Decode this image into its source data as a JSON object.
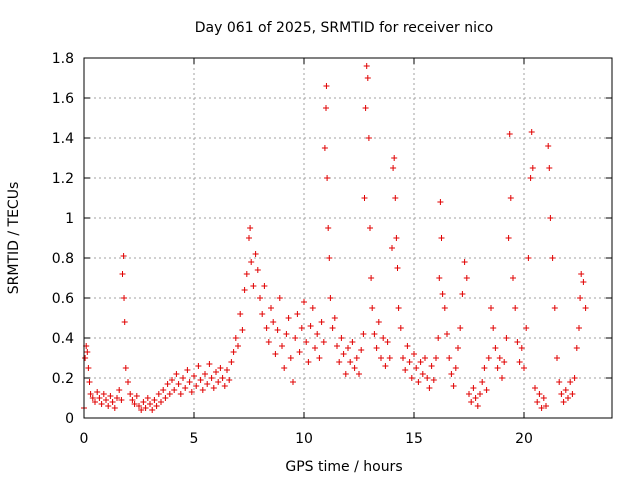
{
  "chart_data": {
    "type": "scatter",
    "title": "Day 061 of 2025, SRMTID for receiver nico",
    "xlabel": "GPS time / hours",
    "ylabel": "SRMTID / TECUs",
    "xlim": [
      0,
      24
    ],
    "ylim": [
      0,
      1.8
    ],
    "x_ticks": [
      0,
      5,
      10,
      15,
      20
    ],
    "x_tick_labels": [
      "0",
      "5",
      "10",
      "15",
      "20"
    ],
    "y_ticks": [
      0,
      0.2,
      0.4,
      0.6,
      0.8,
      1.0,
      1.2,
      1.4,
      1.6,
      1.8
    ],
    "y_tick_labels": [
      "0",
      "0.2",
      "0.4",
      "0.6",
      "0.8",
      "1",
      "1.2",
      "1.4",
      "1.6",
      "1.8"
    ],
    "grid": true,
    "marker": "+",
    "marker_color": "#e00000",
    "series": [
      {
        "name": "SRMTID",
        "points": [
          [
            0.0,
            0.05
          ],
          [
            0.05,
            0.3
          ],
          [
            0.1,
            0.36
          ],
          [
            0.15,
            0.33
          ],
          [
            0.2,
            0.25
          ],
          [
            0.25,
            0.18
          ],
          [
            0.3,
            0.12
          ],
          [
            0.4,
            0.1
          ],
          [
            0.5,
            0.08
          ],
          [
            0.6,
            0.13
          ],
          [
            0.7,
            0.1
          ],
          [
            0.8,
            0.07
          ],
          [
            0.9,
            0.12
          ],
          [
            1.0,
            0.09
          ],
          [
            1.1,
            0.06
          ],
          [
            1.2,
            0.11
          ],
          [
            1.3,
            0.08
          ],
          [
            1.4,
            0.05
          ],
          [
            1.5,
            0.1
          ],
          [
            1.6,
            0.14
          ],
          [
            1.7,
            0.09
          ],
          [
            1.75,
            0.72
          ],
          [
            1.8,
            0.81
          ],
          [
            1.82,
            0.6
          ],
          [
            1.85,
            0.48
          ],
          [
            1.9,
            0.25
          ],
          [
            2.0,
            0.18
          ],
          [
            2.1,
            0.12
          ],
          [
            2.2,
            0.09
          ],
          [
            2.3,
            0.07
          ],
          [
            2.4,
            0.11
          ],
          [
            2.5,
            0.06
          ],
          [
            2.6,
            0.04
          ],
          [
            2.7,
            0.08
          ],
          [
            2.8,
            0.05
          ],
          [
            2.9,
            0.1
          ],
          [
            3.0,
            0.07
          ],
          [
            3.1,
            0.04
          ],
          [
            3.2,
            0.09
          ],
          [
            3.3,
            0.06
          ],
          [
            3.4,
            0.12
          ],
          [
            3.5,
            0.08
          ],
          [
            3.6,
            0.14
          ],
          [
            3.7,
            0.1
          ],
          [
            3.8,
            0.17
          ],
          [
            3.9,
            0.12
          ],
          [
            4.0,
            0.19
          ],
          [
            4.1,
            0.14
          ],
          [
            4.2,
            0.22
          ],
          [
            4.3,
            0.17
          ],
          [
            4.4,
            0.12
          ],
          [
            4.5,
            0.2
          ],
          [
            4.6,
            0.15
          ],
          [
            4.7,
            0.24
          ],
          [
            4.8,
            0.18
          ],
          [
            4.9,
            0.13
          ],
          [
            5.0,
            0.21
          ],
          [
            5.1,
            0.16
          ],
          [
            5.2,
            0.26
          ],
          [
            5.3,
            0.19
          ],
          [
            5.4,
            0.14
          ],
          [
            5.5,
            0.22
          ],
          [
            5.6,
            0.17
          ],
          [
            5.7,
            0.27
          ],
          [
            5.8,
            0.2
          ],
          [
            5.9,
            0.15
          ],
          [
            6.0,
            0.23
          ],
          [
            6.1,
            0.18
          ],
          [
            6.2,
            0.25
          ],
          [
            6.3,
            0.2
          ],
          [
            6.4,
            0.16
          ],
          [
            6.5,
            0.24
          ],
          [
            6.6,
            0.19
          ],
          [
            6.7,
            0.28
          ],
          [
            6.8,
            0.33
          ],
          [
            6.9,
            0.4
          ],
          [
            7.0,
            0.36
          ],
          [
            7.1,
            0.52
          ],
          [
            7.2,
            0.44
          ],
          [
            7.3,
            0.64
          ],
          [
            7.4,
            0.72
          ],
          [
            7.5,
            0.9
          ],
          [
            7.55,
            0.95
          ],
          [
            7.6,
            0.78
          ],
          [
            7.7,
            0.66
          ],
          [
            7.8,
            0.82
          ],
          [
            7.9,
            0.74
          ],
          [
            8.0,
            0.6
          ],
          [
            8.1,
            0.52
          ],
          [
            8.2,
            0.66
          ],
          [
            8.3,
            0.45
          ],
          [
            8.4,
            0.38
          ],
          [
            8.5,
            0.55
          ],
          [
            8.6,
            0.48
          ],
          [
            8.7,
            0.32
          ],
          [
            8.8,
            0.44
          ],
          [
            8.9,
            0.6
          ],
          [
            9.0,
            0.36
          ],
          [
            9.1,
            0.25
          ],
          [
            9.2,
            0.42
          ],
          [
            9.3,
            0.5
          ],
          [
            9.4,
            0.3
          ],
          [
            9.5,
            0.18
          ],
          [
            9.6,
            0.4
          ],
          [
            9.7,
            0.52
          ],
          [
            9.8,
            0.33
          ],
          [
            9.9,
            0.45
          ],
          [
            10.0,
            0.58
          ],
          [
            10.1,
            0.38
          ],
          [
            10.2,
            0.28
          ],
          [
            10.3,
            0.46
          ],
          [
            10.4,
            0.55
          ],
          [
            10.5,
            0.35
          ],
          [
            10.6,
            0.42
          ],
          [
            10.7,
            0.3
          ],
          [
            10.8,
            0.48
          ],
          [
            10.9,
            0.38
          ],
          [
            10.95,
            1.35
          ],
          [
            11.0,
            1.55
          ],
          [
            11.02,
            1.66
          ],
          [
            11.05,
            1.2
          ],
          [
            11.1,
            0.95
          ],
          [
            11.15,
            0.8
          ],
          [
            11.2,
            0.6
          ],
          [
            11.3,
            0.45
          ],
          [
            11.4,
            0.5
          ],
          [
            11.5,
            0.36
          ],
          [
            11.6,
            0.28
          ],
          [
            11.7,
            0.4
          ],
          [
            11.8,
            0.32
          ],
          [
            11.9,
            0.22
          ],
          [
            12.0,
            0.35
          ],
          [
            12.1,
            0.28
          ],
          [
            12.2,
            0.38
          ],
          [
            12.3,
            0.25
          ],
          [
            12.4,
            0.3
          ],
          [
            12.5,
            0.22
          ],
          [
            12.6,
            0.34
          ],
          [
            12.7,
            0.42
          ],
          [
            12.75,
            1.1
          ],
          [
            12.8,
            1.55
          ],
          [
            12.85,
            1.76
          ],
          [
            12.9,
            1.7
          ],
          [
            12.95,
            1.4
          ],
          [
            13.0,
            0.95
          ],
          [
            13.05,
            0.7
          ],
          [
            13.1,
            0.55
          ],
          [
            13.2,
            0.42
          ],
          [
            13.3,
            0.35
          ],
          [
            13.4,
            0.48
          ],
          [
            13.5,
            0.3
          ],
          [
            13.6,
            0.4
          ],
          [
            13.7,
            0.26
          ],
          [
            13.8,
            0.38
          ],
          [
            13.9,
            0.3
          ],
          [
            14.0,
            0.85
          ],
          [
            14.05,
            1.25
          ],
          [
            14.1,
            1.3
          ],
          [
            14.15,
            1.1
          ],
          [
            14.2,
            0.9
          ],
          [
            14.25,
            0.75
          ],
          [
            14.3,
            0.55
          ],
          [
            14.4,
            0.45
          ],
          [
            14.5,
            0.3
          ],
          [
            14.6,
            0.24
          ],
          [
            14.7,
            0.36
          ],
          [
            14.8,
            0.28
          ],
          [
            14.9,
            0.2
          ],
          [
            15.0,
            0.32
          ],
          [
            15.1,
            0.25
          ],
          [
            15.2,
            0.18
          ],
          [
            15.3,
            0.28
          ],
          [
            15.4,
            0.22
          ],
          [
            15.5,
            0.3
          ],
          [
            15.6,
            0.2
          ],
          [
            15.7,
            0.15
          ],
          [
            15.8,
            0.26
          ],
          [
            15.9,
            0.19
          ],
          [
            16.0,
            0.3
          ],
          [
            16.1,
            0.4
          ],
          [
            16.15,
            0.7
          ],
          [
            16.2,
            1.08
          ],
          [
            16.25,
            0.9
          ],
          [
            16.3,
            0.62
          ],
          [
            16.4,
            0.55
          ],
          [
            16.5,
            0.42
          ],
          [
            16.6,
            0.3
          ],
          [
            16.7,
            0.22
          ],
          [
            16.8,
            0.16
          ],
          [
            16.9,
            0.25
          ],
          [
            17.0,
            0.35
          ],
          [
            17.1,
            0.45
          ],
          [
            17.2,
            0.62
          ],
          [
            17.3,
            0.78
          ],
          [
            17.4,
            0.7
          ],
          [
            17.5,
            0.12
          ],
          [
            17.6,
            0.08
          ],
          [
            17.7,
            0.15
          ],
          [
            17.8,
            0.1
          ],
          [
            17.9,
            0.06
          ],
          [
            18.0,
            0.12
          ],
          [
            18.1,
            0.18
          ],
          [
            18.2,
            0.25
          ],
          [
            18.3,
            0.14
          ],
          [
            18.4,
            0.3
          ],
          [
            18.5,
            0.55
          ],
          [
            18.6,
            0.45
          ],
          [
            18.7,
            0.35
          ],
          [
            18.8,
            0.25
          ],
          [
            18.9,
            0.3
          ],
          [
            19.0,
            0.2
          ],
          [
            19.1,
            0.28
          ],
          [
            19.2,
            0.4
          ],
          [
            19.3,
            0.9
          ],
          [
            19.35,
            1.42
          ],
          [
            19.4,
            1.1
          ],
          [
            19.5,
            0.7
          ],
          [
            19.6,
            0.55
          ],
          [
            19.7,
            0.38
          ],
          [
            19.8,
            0.28
          ],
          [
            19.9,
            0.35
          ],
          [
            20.0,
            0.25
          ],
          [
            20.1,
            0.45
          ],
          [
            20.2,
            0.8
          ],
          [
            20.3,
            1.2
          ],
          [
            20.35,
            1.43
          ],
          [
            20.4,
            1.25
          ],
          [
            20.5,
            0.15
          ],
          [
            20.6,
            0.08
          ],
          [
            20.7,
            0.12
          ],
          [
            20.8,
            0.05
          ],
          [
            20.9,
            0.1
          ],
          [
            21.0,
            0.06
          ],
          [
            21.1,
            1.36
          ],
          [
            21.15,
            1.25
          ],
          [
            21.2,
            1.0
          ],
          [
            21.3,
            0.8
          ],
          [
            21.4,
            0.55
          ],
          [
            21.5,
            0.3
          ],
          [
            21.6,
            0.18
          ],
          [
            21.7,
            0.12
          ],
          [
            21.8,
            0.08
          ],
          [
            21.9,
            0.14
          ],
          [
            22.0,
            0.1
          ],
          [
            22.1,
            0.18
          ],
          [
            22.2,
            0.12
          ],
          [
            22.3,
            0.2
          ],
          [
            22.4,
            0.35
          ],
          [
            22.5,
            0.45
          ],
          [
            22.55,
            0.6
          ],
          [
            22.6,
            0.72
          ],
          [
            22.7,
            0.68
          ],
          [
            22.8,
            0.55
          ]
        ]
      }
    ]
  }
}
